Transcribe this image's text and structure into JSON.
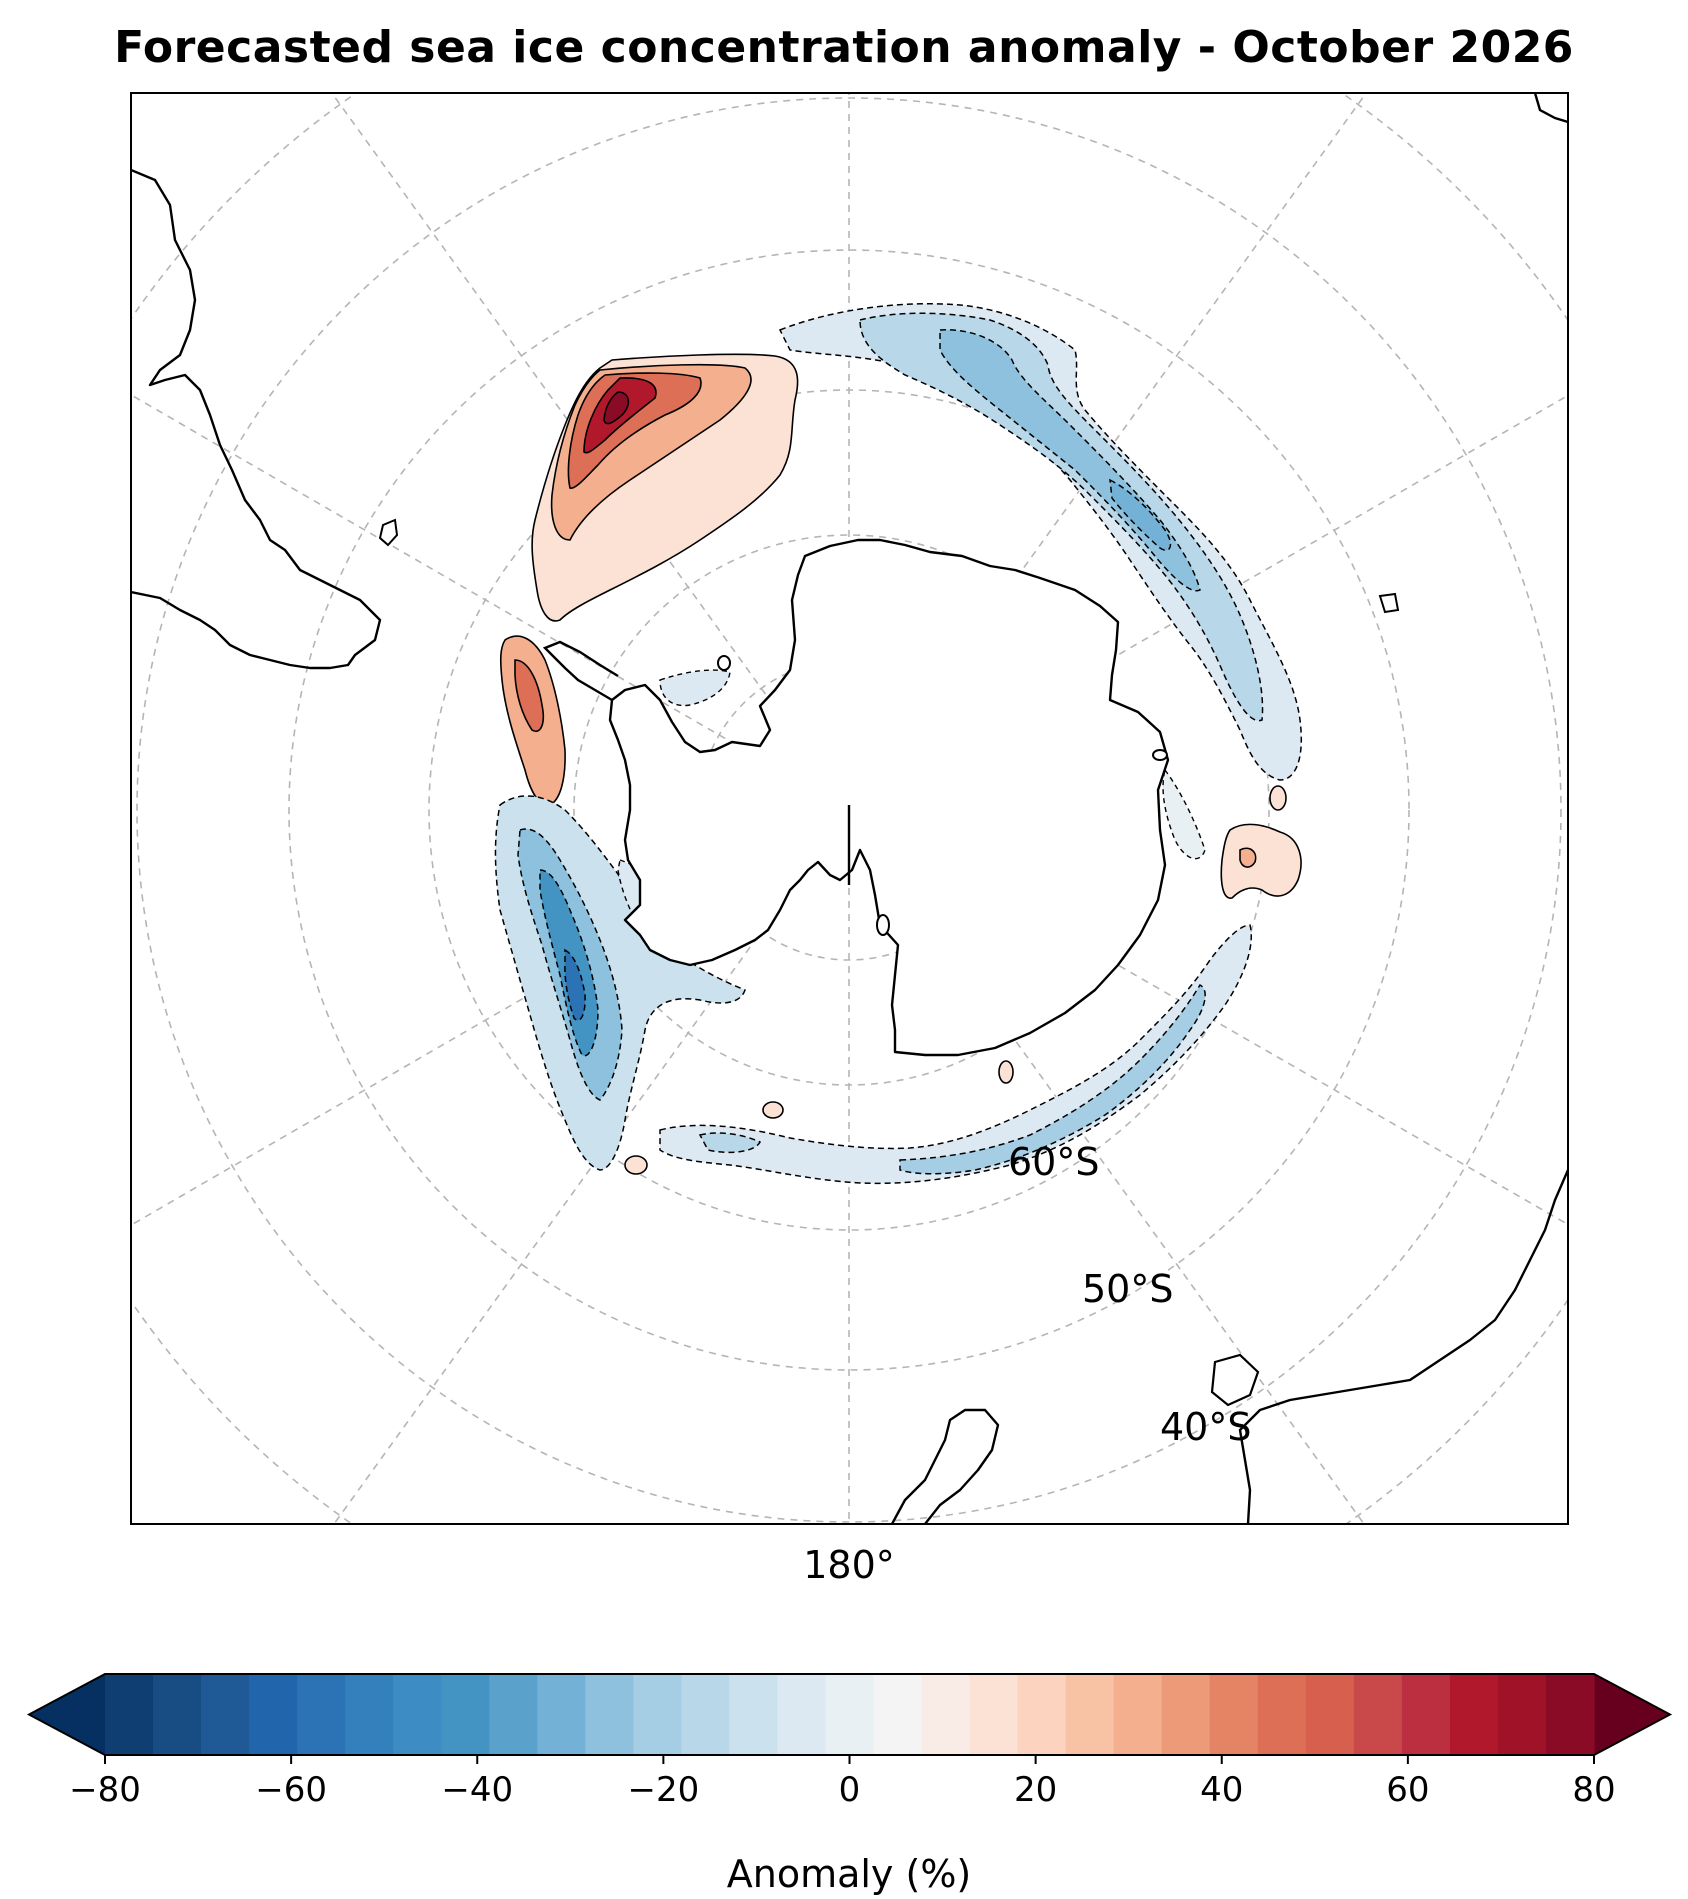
{
  "title": "Forecasted sea ice concentration anomaly - October 2026",
  "map": {
    "projection": "south polar stereographic",
    "parallel_labels": [
      "60°S",
      "50°S",
      "40°S"
    ],
    "meridian_labels": [
      "180°"
    ],
    "gridline_style": "dashed gray",
    "features": [
      "coastlines",
      "sea ice anomaly filled contours",
      "anomaly contour lines"
    ]
  },
  "colorbar": {
    "label": "Anomaly (%)",
    "ticks": [
      "−80",
      "−60",
      "−40",
      "−20",
      "0",
      "20",
      "40",
      "60",
      "80"
    ],
    "vmin": -80,
    "vmax": 80,
    "extend": "both",
    "colormap": "RdBu_r",
    "colors": [
      "#053061",
      "#0e3e72",
      "#184d84",
      "#1f5a97",
      "#2166ac",
      "#2b73b4",
      "#3480bc",
      "#3d8cc4",
      "#4393c3",
      "#5aa2cc",
      "#73b2d6",
      "#8dc1dd",
      "#a5cde3",
      "#b8d8e9",
      "#cbe2ee",
      "#dde9f2",
      "#e9f0f4",
      "#f4f4f4",
      "#f9ece6",
      "#fbe2d5",
      "#fbd3be",
      "#f8c2a5",
      "#f4af8e",
      "#ec9a78",
      "#e58465",
      "#dd6f56",
      "#d6604d",
      "#c9484a",
      "#bb2f41",
      "#b2182b",
      "#a01228",
      "#8a0b25",
      "#67001f"
    ]
  }
}
